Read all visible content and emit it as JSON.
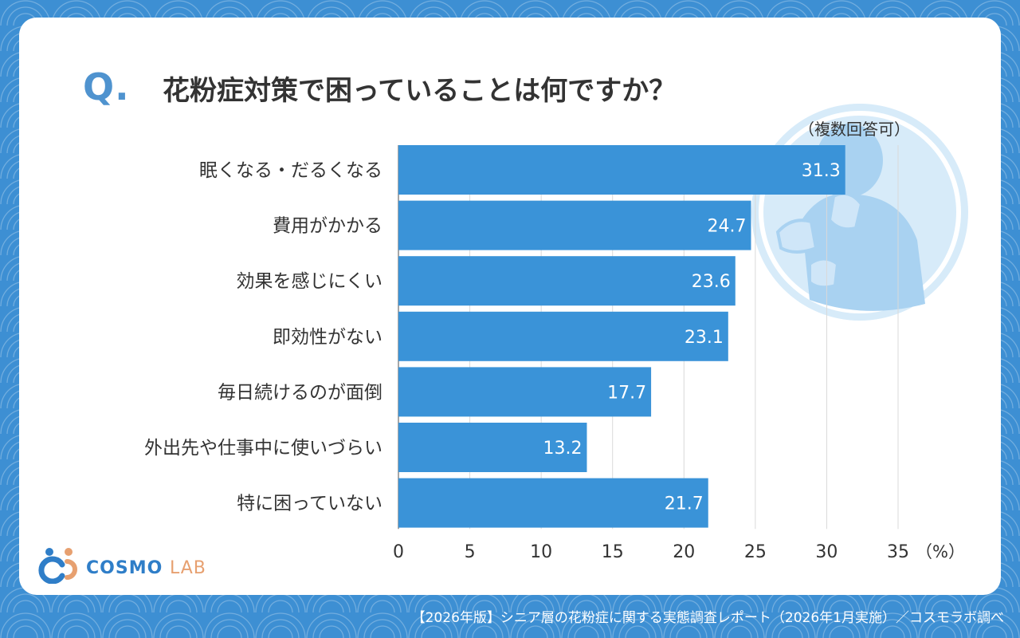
{
  "question_mark": "Q.",
  "title": "花粉症対策で困っていることは何ですか？",
  "note": "（複数回答可）",
  "logo": {
    "brand": "COSMO",
    "suffix": "LAB"
  },
  "footer": "【2026年版】シニア層の花粉症に関する実態調査レポート（2026年1月実施）／コスモラボ調べ",
  "colors": {
    "bar": "#3a93d8",
    "background": "#3d8fd3",
    "accent": "#4f93cf"
  },
  "chart_data": {
    "type": "bar",
    "orientation": "horizontal",
    "categories": [
      "眠くなる・だるくなる",
      "費用がかかる",
      "効果を感じにくい",
      "即効性がない",
      "毎日続けるのが面倒",
      "外出先や仕事中に使いづらい",
      "特に困っていない"
    ],
    "values": [
      31.3,
      24.7,
      23.6,
      23.1,
      17.7,
      13.2,
      21.7
    ],
    "value_labels": [
      "31.3",
      "24.7",
      "23.6",
      "23.1",
      "17.7",
      "13.2",
      "21.7"
    ],
    "xticks": [
      "0",
      "5",
      "10",
      "15",
      "20",
      "25",
      "30",
      "35"
    ],
    "xlim": [
      0,
      35
    ],
    "unit_label": "（%）",
    "grid": true
  }
}
